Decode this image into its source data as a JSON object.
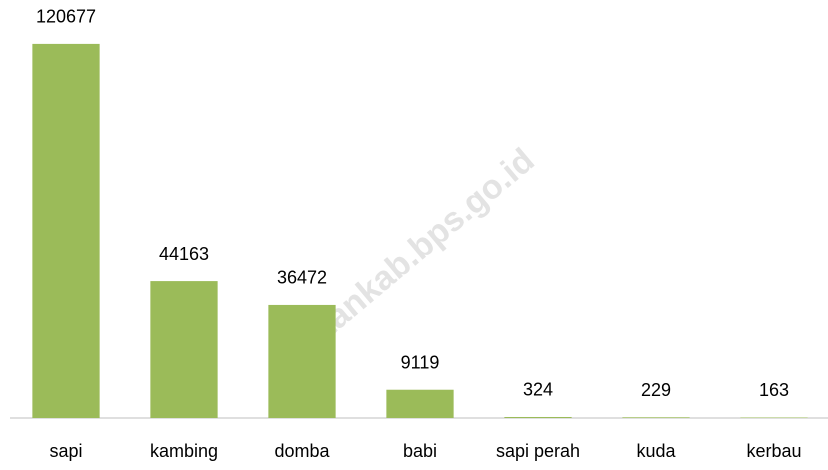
{
  "chart_data": {
    "type": "bar",
    "categories": [
      "sapi",
      "kambing",
      "domba",
      "babi",
      "sapi perah",
      "kuda",
      "kerbau"
    ],
    "values": [
      120677,
      44163,
      36472,
      9119,
      324,
      229,
      163
    ],
    "color": "#9bbb59",
    "ylim": [
      0,
      130000
    ],
    "annotations": [
      "etankab.bps.go.id"
    ]
  }
}
